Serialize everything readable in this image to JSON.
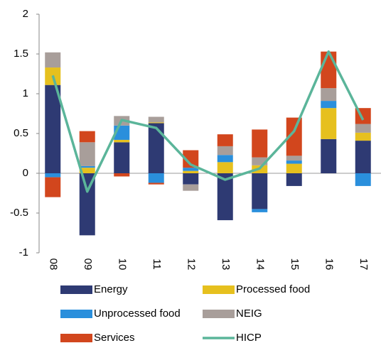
{
  "chart_data": {
    "type": "bar",
    "stacked": true,
    "categories": [
      "08",
      "09",
      "10",
      "11",
      "12",
      "13",
      "14",
      "15",
      "16",
      "17"
    ],
    "series": [
      {
        "name": "Energy",
        "color": "#2e3a73",
        "values": [
          1.11,
          -0.78,
          0.39,
          0.63,
          -0.14,
          -0.59,
          -0.45,
          -0.16,
          0.43,
          0.41
        ]
      },
      {
        "name": "Processed food",
        "color": "#e6c01e",
        "values": [
          0.22,
          0.07,
          0.03,
          0.01,
          0.03,
          0.14,
          0.1,
          0.12,
          0.39,
          0.1
        ]
      },
      {
        "name": "Unprocessed food",
        "color": "#2a8fdc",
        "values": [
          -0.05,
          0.02,
          0.18,
          -0.12,
          0.04,
          0.09,
          -0.04,
          0.04,
          0.09,
          -0.16
        ]
      },
      {
        "name": "NEIG",
        "color": "#a89e9a",
        "values": [
          0.19,
          0.3,
          0.12,
          0.07,
          -0.08,
          0.11,
          0.1,
          0.06,
          0.16,
          0.11
        ]
      },
      {
        "name": "Services",
        "color": "#d2461d",
        "values": [
          -0.25,
          0.14,
          -0.04,
          -0.02,
          0.22,
          0.15,
          0.35,
          0.48,
          0.46,
          0.2
        ]
      },
      {
        "name": "HICP",
        "color": "#5bb59a",
        "type": "line",
        "values": [
          1.23,
          -0.23,
          0.67,
          0.57,
          0.11,
          -0.08,
          0.06,
          0.53,
          1.53,
          0.67
        ]
      }
    ],
    "ylim": [
      -1,
      2
    ],
    "yticks": [
      -1,
      -0.5,
      0,
      0.5,
      1,
      1.5,
      2
    ],
    "grid": false
  }
}
